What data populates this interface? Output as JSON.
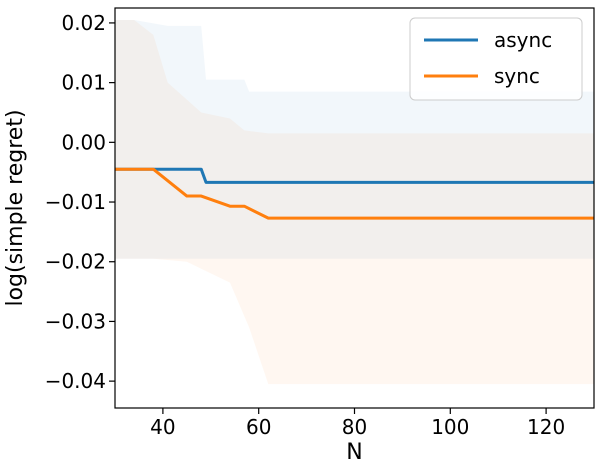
{
  "chart_data": {
    "type": "line",
    "title": "",
    "xlabel": "N",
    "ylabel": "log(simple regret)",
    "xlim": [
      30,
      130
    ],
    "ylim": [
      -0.0445,
      0.0225
    ],
    "xticks": [
      40,
      60,
      80,
      100,
      120
    ],
    "yticks": [
      0.02,
      0.01,
      0.0,
      -0.01,
      -0.02,
      -0.03,
      -0.04
    ],
    "ytick_labels": [
      "0.02",
      "0.01",
      "0.00",
      "−0.01",
      "−0.02",
      "−0.03",
      "−0.04"
    ],
    "grid": false,
    "legend_position": "upper right",
    "series": [
      {
        "name": "async",
        "color": "#1f77b4",
        "x": [
          30,
          48,
          49,
          130
        ],
        "y": [
          -0.0045,
          -0.0045,
          -0.0067,
          -0.0067
        ],
        "band_upper": {
          "x": [
            30,
            34,
            41,
            48,
            49,
            57,
            58,
            130
          ],
          "y": [
            0.0205,
            0.0205,
            0.0195,
            0.0195,
            0.0105,
            0.0105,
            0.0085,
            0.0085
          ]
        },
        "band_lower": {
          "x": [
            30,
            130
          ],
          "y": [
            -0.0195,
            -0.0195
          ]
        }
      },
      {
        "name": "sync",
        "color": "#ff7f0e",
        "x": [
          30,
          38,
          45,
          48,
          54,
          57,
          62,
          130
        ],
        "y": [
          -0.0045,
          -0.0045,
          -0.009,
          -0.009,
          -0.0107,
          -0.0107,
          -0.0127,
          -0.0127
        ],
        "band_upper": {
          "x": [
            30,
            34,
            38,
            41,
            48,
            54,
            57,
            62,
            130
          ],
          "y": [
            0.0205,
            0.0205,
            0.018,
            0.01,
            0.005,
            0.004,
            0.002,
            0.0015,
            0.0015
          ]
        },
        "band_lower": {
          "x": [
            30,
            38,
            45,
            54,
            58,
            62,
            130
          ],
          "y": [
            -0.0195,
            -0.0195,
            -0.02,
            -0.0235,
            -0.031,
            -0.0405,
            -0.0405
          ]
        }
      }
    ]
  }
}
